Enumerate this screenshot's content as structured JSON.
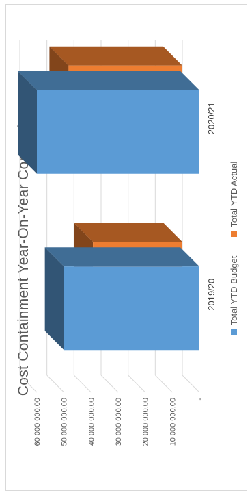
{
  "chart_data": {
    "type": "bar",
    "title": "Cost Containment Year-On-Year Comparison",
    "categories": [
      "2019/20",
      "2020/21"
    ],
    "series": [
      {
        "name": "Total YTD  Budget",
        "color": "#5b9bd5",
        "values": [
          50000000,
          60000000
        ]
      },
      {
        "name": "Total YTD Actual",
        "color": "#ed7d31",
        "values": [
          33000000,
          42000000
        ]
      }
    ],
    "y_ticks": [
      "-",
      "10 000 000.00",
      "20 000 000.00",
      "30 000 000.00",
      "40 000 000.00",
      "50 000 000.00",
      "60 000 000.00"
    ],
    "ylim": [
      0,
      60000000
    ],
    "grid": true,
    "style": "3D clustered column",
    "legend_position": "bottom",
    "xlabel": "",
    "ylabel": ""
  }
}
